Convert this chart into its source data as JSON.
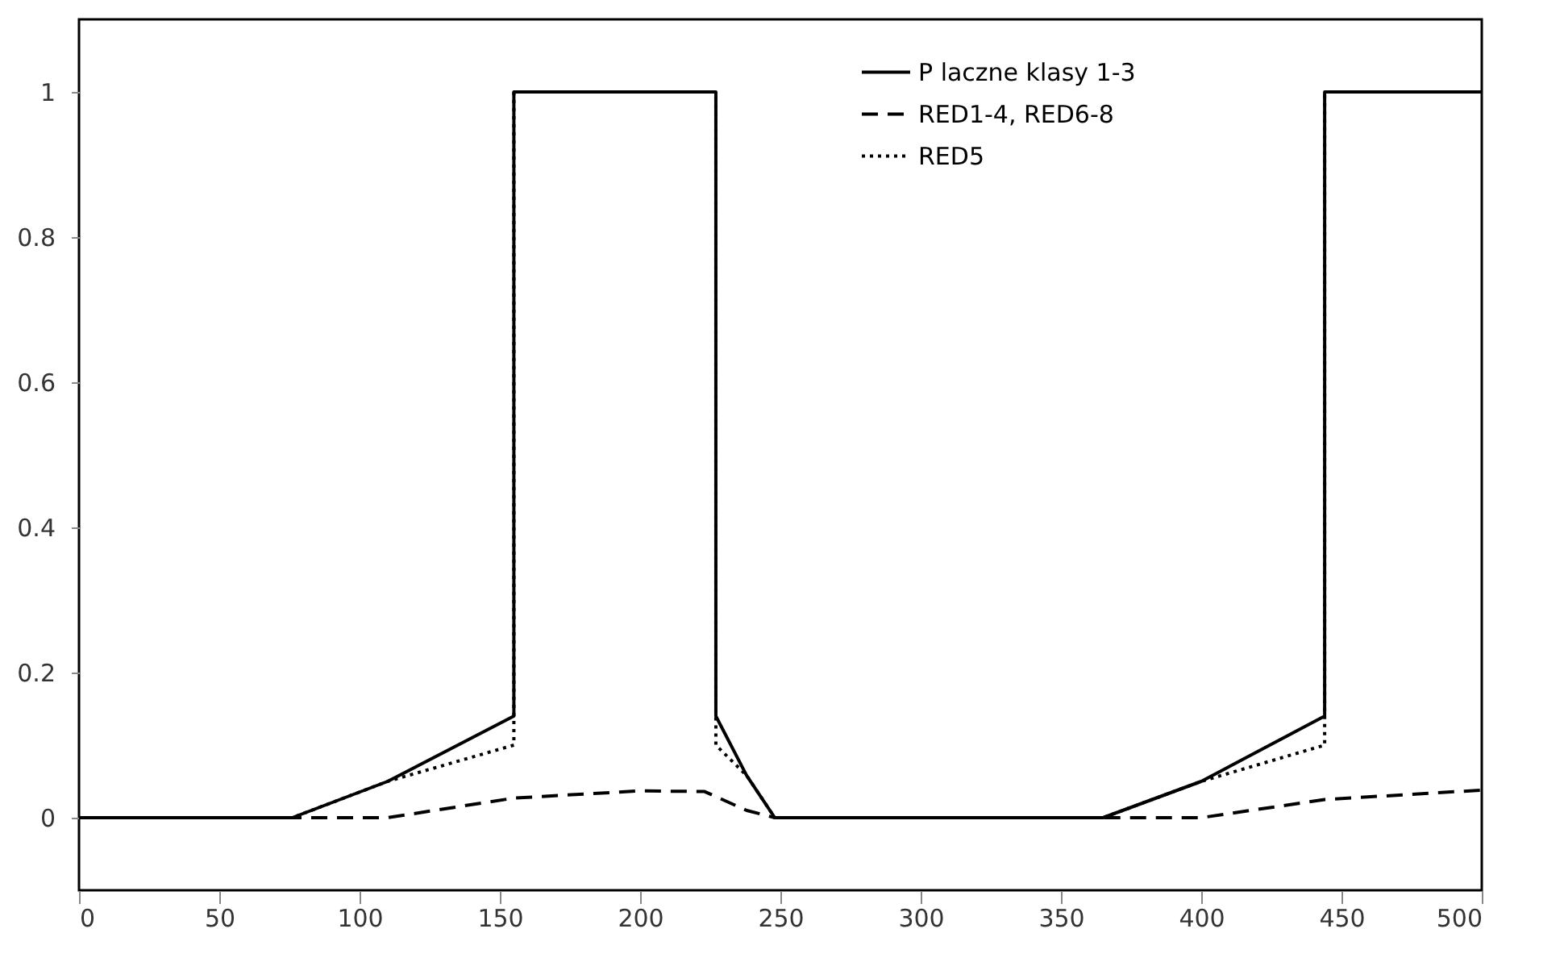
{
  "chart_data": {
    "type": "line",
    "xlim": [
      0,
      500
    ],
    "xticks": [
      0,
      50,
      100,
      150,
      200,
      250,
      300,
      350,
      400,
      450,
      500
    ],
    "ylim": [
      -0.1,
      1.1
    ],
    "yticks": [
      {
        "value": 0,
        "label": "0"
      },
      0.2,
      0.4,
      0.6,
      0.8,
      {
        "value": 1,
        "label": "1"
      }
    ],
    "legend": "top right",
    "series": [
      {
        "name": "P laczne klasy 1-3",
        "color": "#000000",
        "line_style": "solid",
        "x": [
          0,
          76,
          110,
          155,
          155,
          227,
          227,
          238,
          248,
          365,
          400,
          444,
          444,
          500
        ],
        "values": [
          0,
          0,
          0.05,
          0.14,
          1,
          1,
          0.14,
          0.058,
          0,
          0,
          0.05,
          0.14,
          1,
          1
        ]
      },
      {
        "name": "RED1-4, RED6-8",
        "color": "#000000",
        "line_style": "dashed",
        "x": [
          0,
          110,
          155,
          200,
          223,
          238,
          248,
          400,
          444,
          500
        ],
        "values": [
          0,
          0,
          0.027,
          0.037,
          0.036,
          0.01,
          0,
          0,
          0.025,
          0.038
        ]
      },
      {
        "name": "RED5",
        "color": "#000000",
        "line_style": "dotted",
        "x": [
          0,
          76,
          110,
          155,
          155,
          227,
          227,
          238,
          248,
          365,
          400,
          444,
          444,
          500
        ],
        "values": [
          0,
          0,
          0.05,
          0.1,
          1,
          1,
          0.1,
          0.058,
          0,
          0,
          0.05,
          0.1,
          1,
          1
        ]
      }
    ]
  }
}
